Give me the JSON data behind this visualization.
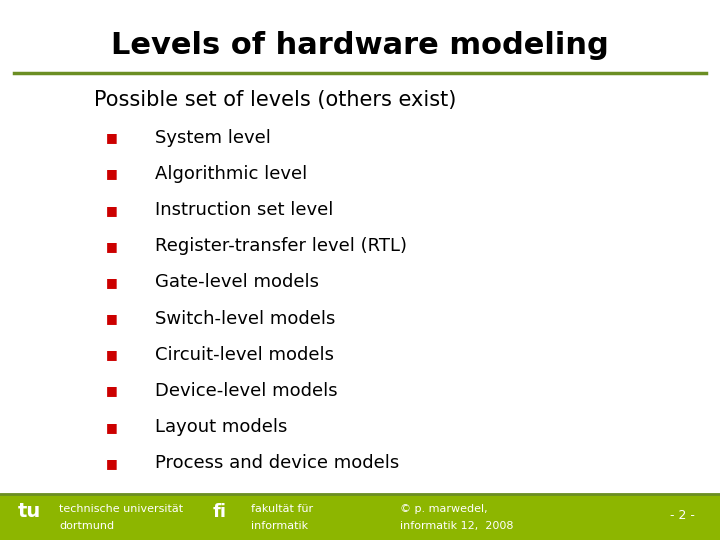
{
  "title": "Levels of hardware modeling",
  "subtitle": "Possible set of levels (others exist)",
  "bullet_items": [
    "System level",
    "Algorithmic level",
    "Instruction set level",
    "Register-transfer level (RTL)",
    "Gate-level models",
    "Switch-level models",
    "Circuit-level models",
    "Device-level models",
    "Layout models",
    "Process and device models"
  ],
  "bullet_color": "#cc0000",
  "title_color": "#000000",
  "subtitle_color": "#000000",
  "text_color": "#000000",
  "bg_color": "#ffffff",
  "olive_line_color": "#6b8e23",
  "footer_bg_color": "#8db600",
  "footer_text_left1": "technische universität",
  "footer_text_left2": "dortmund",
  "footer_text_mid1": "fakultät für",
  "footer_text_mid2": "informatik",
  "footer_text_right1": "© p. marwedel,",
  "footer_text_right2": "informatik 12,  2008",
  "footer_page": "- 2 -",
  "title_fontsize": 22,
  "subtitle_fontsize": 15,
  "bullet_fontsize": 13,
  "footer_fontsize": 8
}
